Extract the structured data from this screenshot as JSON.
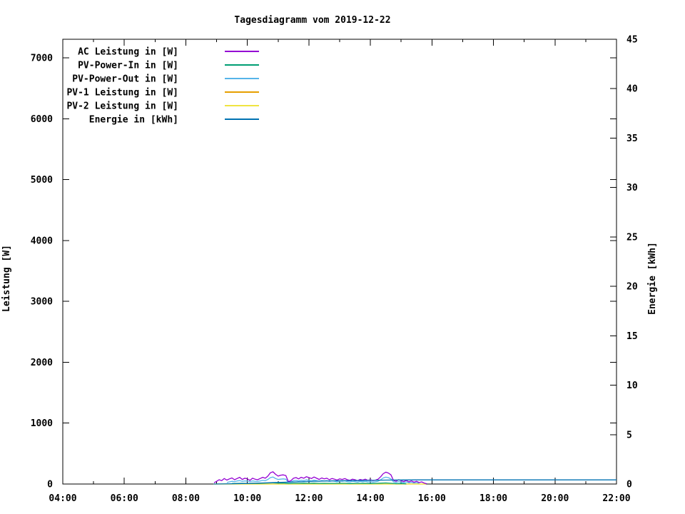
{
  "title": "Tagesdiagramm vom 2019-12-22",
  "background_color": "#ffffff",
  "chart_data": {
    "type": "line",
    "title": "Tagesdiagramm vom 2019-12-22",
    "grid": false,
    "legend_position": "top-left-inside",
    "x": {
      "min": 4,
      "max": 22,
      "major_tick_hours": [
        4,
        6,
        8,
        10,
        12,
        14,
        16,
        18,
        20,
        22
      ],
      "minor_tick_hours": [
        5,
        7,
        9,
        11,
        13,
        15,
        17,
        19,
        21
      ],
      "tick_labels": [
        "04:00",
        "06:00",
        "08:00",
        "10:00",
        "12:00",
        "14:00",
        "16:00",
        "18:00",
        "20:00",
        "22:00"
      ]
    },
    "y_left": {
      "label": "Leistung [W]",
      "min": 0,
      "max": 7305,
      "ticks": [
        0,
        1000,
        2000,
        3000,
        4000,
        5000,
        6000,
        7000
      ]
    },
    "y_right": {
      "label": "Energie [kWh]",
      "min": 0,
      "max": 45,
      "ticks": [
        0,
        5,
        10,
        15,
        20,
        25,
        30,
        35,
        40,
        45
      ]
    },
    "series": [
      {
        "name": "AC Leistung in [W]",
        "color": "#9400d3",
        "axis": "left",
        "start_h": 8.9167,
        "step_min": 5,
        "values": [
          20,
          45,
          70,
          55,
          90,
          65,
          85,
          100,
          70,
          90,
          110,
          75,
          95,
          85,
          60,
          95,
          80,
          70,
          90,
          110,
          95,
          130,
          185,
          200,
          160,
          130,
          145,
          150,
          140,
          40,
          55,
          95,
          105,
          85,
          110,
          95,
          120,
          105,
          90,
          115,
          95,
          75,
          100,
          85,
          95,
          70,
          90,
          80,
          65,
          85,
          75,
          90,
          70,
          60,
          80,
          70,
          55,
          75,
          65,
          80,
          60,
          70,
          55,
          65,
          80,
          120,
          170,
          195,
          180,
          150,
          60,
          45,
          70,
          55,
          40,
          60,
          35,
          50,
          30,
          45,
          25,
          35,
          15,
          5
        ]
      },
      {
        "name": "PV-Power-In in [W]",
        "color": "#009e73",
        "axis": "left",
        "start_h": 9.5,
        "step_min": 10,
        "values": [
          8,
          10,
          12,
          10,
          12,
          10,
          14,
          16,
          20,
          15,
          16,
          8,
          12,
          12,
          14,
          12,
          14,
          10,
          12,
          10,
          10,
          12,
          12,
          8,
          10,
          10,
          12,
          8,
          10,
          14,
          18,
          12,
          6,
          8,
          4
        ]
      },
      {
        "name": "PV-Power-Out in [W]",
        "color": "#56b4e9",
        "axis": "left",
        "start_h": 9.3333,
        "step_min": 5,
        "values": [
          25,
          35,
          45,
          40,
          50,
          55,
          45,
          50,
          48,
          40,
          50,
          45,
          42,
          50,
          60,
          55,
          75,
          105,
          115,
          90,
          75,
          80,
          85,
          78,
          30,
          35,
          55,
          60,
          50,
          62,
          55,
          68,
          60,
          52,
          65,
          55,
          45,
          58,
          50,
          55,
          42,
          52,
          46,
          38,
          48,
          44,
          52,
          40,
          35,
          46,
          40,
          32,
          44,
          38,
          46,
          35,
          40,
          32,
          38,
          46,
          70,
          100,
          112,
          104,
          85,
          35,
          26,
          40,
          32,
          24,
          34,
          20,
          28,
          16,
          24,
          10
        ]
      },
      {
        "name": "PV-1 Leistung in [W]",
        "color": "#e69f00",
        "axis": "left",
        "points": [
          [
            8.9,
            0
          ],
          [
            15.8,
            0
          ]
        ]
      },
      {
        "name": "PV-2 Leistung in [W]",
        "color": "#f0e442",
        "axis": "left",
        "points": [
          [
            8.9,
            0
          ],
          [
            15.8,
            0
          ]
        ]
      },
      {
        "name": "Energie in [kWh]",
        "color": "#0072b2",
        "axis": "right",
        "points": [
          [
            8.9,
            0
          ],
          [
            9.5,
            0.03
          ],
          [
            10,
            0.06
          ],
          [
            10.5,
            0.11
          ],
          [
            11,
            0.16
          ],
          [
            11.5,
            0.21
          ],
          [
            12,
            0.26
          ],
          [
            12.5,
            0.3
          ],
          [
            13,
            0.33
          ],
          [
            13.5,
            0.35
          ],
          [
            14,
            0.37
          ],
          [
            14.5,
            0.4
          ],
          [
            15,
            0.41
          ],
          [
            15.5,
            0.42
          ],
          [
            16,
            0.42
          ],
          [
            22,
            0.42
          ]
        ]
      }
    ]
  }
}
